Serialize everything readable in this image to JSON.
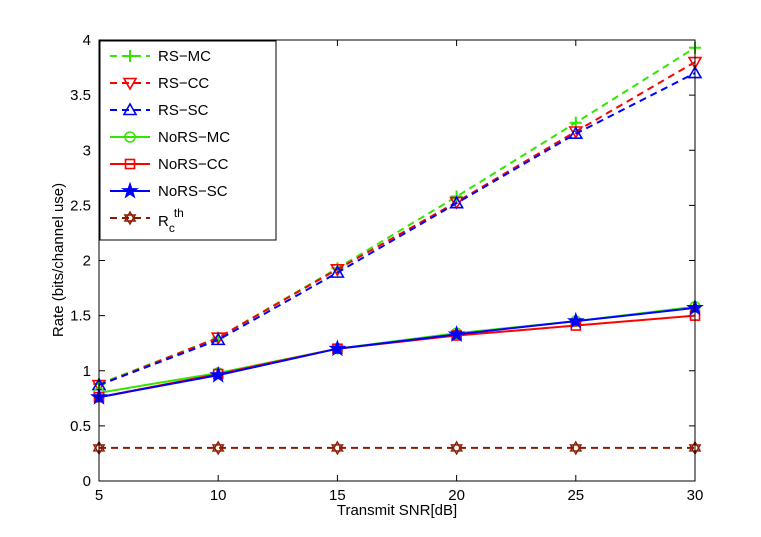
{
  "chart_data": {
    "type": "line",
    "title": "",
    "xlabel": "Transmit SNR[dB]",
    "ylabel": "Rate (bits/channel use)",
    "xlim": [
      5,
      30
    ],
    "ylim": [
      0,
      4
    ],
    "xticks": [
      "5",
      "10",
      "15",
      "20",
      "25",
      "30"
    ],
    "yticks": [
      "0",
      "0.5",
      "1",
      "1.5",
      "2",
      "2.5",
      "3",
      "3.5",
      "4"
    ],
    "legend_position": "top-left",
    "x": [
      5,
      10,
      15,
      20,
      25,
      30
    ],
    "series": [
      {
        "name": "RS−MC",
        "color": "#33e600",
        "dash": "dashed",
        "marker": "plus",
        "values": [
          0.88,
          1.3,
          1.93,
          2.58,
          3.25,
          3.93
        ]
      },
      {
        "name": "RS−CC",
        "color": "#ff0000",
        "dash": "dashed",
        "marker": "triangle-down",
        "values": [
          0.87,
          1.3,
          1.92,
          2.53,
          3.17,
          3.8
        ]
      },
      {
        "name": "RS−SC",
        "color": "#0000ff",
        "dash": "dashed",
        "marker": "triangle-up",
        "values": [
          0.87,
          1.28,
          1.89,
          2.52,
          3.15,
          3.7
        ]
      },
      {
        "name": "NoRS−MC",
        "color": "#33e600",
        "dash": "solid",
        "marker": "circle",
        "values": [
          0.8,
          0.98,
          1.2,
          1.34,
          1.45,
          1.58
        ]
      },
      {
        "name": "NoRS−CC",
        "color": "#ff0000",
        "dash": "solid",
        "marker": "square",
        "values": [
          0.76,
          0.97,
          1.2,
          1.32,
          1.41,
          1.5
        ]
      },
      {
        "name": "NoRS−SC",
        "color": "#0000ff",
        "dash": "solid",
        "marker": "star",
        "values": [
          0.76,
          0.96,
          1.2,
          1.33,
          1.45,
          1.57
        ]
      },
      {
        "name": "R_c^th",
        "color": "#8b1a00",
        "dash": "dashed",
        "marker": "hexagram",
        "values": [
          0.3,
          0.3,
          0.3,
          0.3,
          0.3,
          0.3
        ]
      }
    ],
    "legend_rth": {
      "base": "R",
      "sub": "c",
      "sup": "th"
    }
  }
}
